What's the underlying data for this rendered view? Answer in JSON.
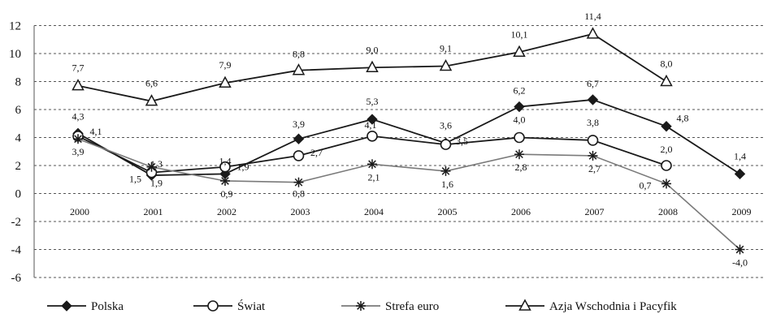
{
  "chart_data": {
    "type": "line",
    "title": "",
    "xlabel": "",
    "ylabel": "",
    "categories": [
      "2000",
      "2001",
      "2002",
      "2003",
      "2004",
      "2005",
      "2006",
      "2007",
      "2008",
      "2009"
    ],
    "ylim": [
      -6,
      12
    ],
    "yticks": [
      "-6",
      "-4",
      "-2",
      "0",
      "2",
      "4",
      "6",
      "8",
      "10",
      "12"
    ],
    "grid": "horizontal dashed",
    "legend_position": "bottom",
    "series": [
      {
        "name": "Polska",
        "marker": "diamond",
        "color": "#1a1a1a",
        "values": [
          4.3,
          1.3,
          1.4,
          3.9,
          5.3,
          3.6,
          6.2,
          6.7,
          4.8,
          1.4
        ],
        "labels": [
          "4,3",
          "1,3",
          "1,4",
          "3,9",
          "5,3",
          "3,6",
          "6,2",
          "6,7",
          "4,8",
          "1,4"
        ]
      },
      {
        "name": "Świat",
        "marker": "circle",
        "color": "#1a1a1a",
        "values": [
          4.1,
          1.5,
          1.9,
          2.7,
          4.1,
          3.5,
          4.0,
          3.8,
          2.0,
          null
        ],
        "labels": [
          "4,1",
          "1,5",
          "1,9",
          "2,7",
          "4,1",
          "3,5",
          "4,0",
          "3,8",
          "2,0",
          ""
        ]
      },
      {
        "name": "Strefa euro",
        "marker": "star",
        "color": "#7a7a7a",
        "values": [
          3.9,
          1.9,
          0.9,
          0.8,
          2.1,
          1.6,
          2.8,
          2.7,
          0.7,
          -4.0
        ],
        "labels": [
          "3,9",
          "1,9",
          "0,9",
          "0,8",
          "2,1",
          "1,6",
          "2,8",
          "2,7",
          "0,7",
          "-4,0"
        ]
      },
      {
        "name": "Azja Wschodnia i Pacyfik",
        "marker": "triangle",
        "color": "#1a1a1a",
        "values": [
          7.7,
          6.6,
          7.9,
          8.8,
          9.0,
          9.1,
          10.1,
          11.4,
          8.0,
          null
        ],
        "labels": [
          "7,7",
          "6,6",
          "7,9",
          "8,8",
          "9,0",
          "9,1",
          "10,1",
          "11,4",
          "8,0",
          ""
        ]
      }
    ]
  }
}
